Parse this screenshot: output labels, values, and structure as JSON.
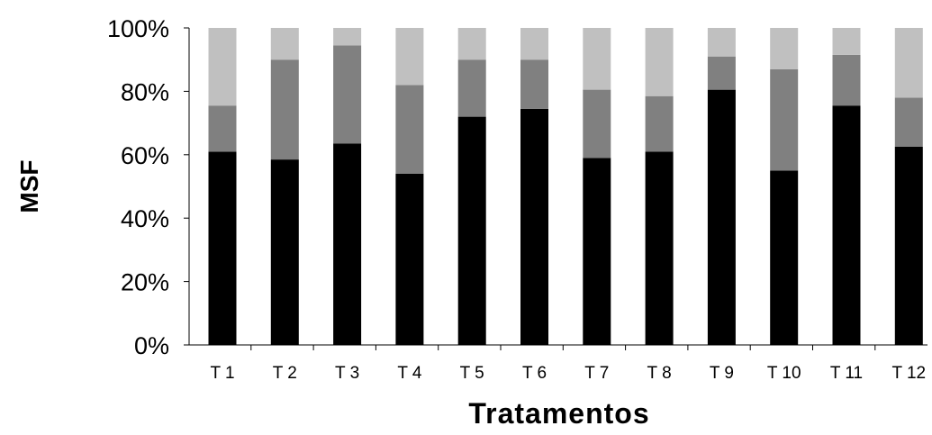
{
  "chart_data": {
    "type": "bar",
    "stacked": true,
    "percent": true,
    "title": "",
    "xlabel": "Tratamentos",
    "ylabel": "MSF",
    "ylim": [
      0,
      100
    ],
    "yticks": [
      "0%",
      "20%",
      "40%",
      "60%",
      "80%",
      "100%"
    ],
    "grid": false,
    "legend": "none",
    "categories": [
      "T 1",
      "T 2",
      "T 3",
      "T 4",
      "T 5",
      "T 6",
      "T 7",
      "T 8",
      "T 9",
      "T 10",
      "T 11",
      "T 12"
    ],
    "series": [
      {
        "values": [
          61,
          58.5,
          63.5,
          54,
          72,
          74.5,
          59,
          61,
          80.5,
          55,
          75.5,
          62.5
        ],
        "color": "#000000"
      },
      {
        "values": [
          14.5,
          31.5,
          31,
          28,
          18,
          15.5,
          21.5,
          17.5,
          10.5,
          32,
          16,
          15.5
        ],
        "color": "#808080"
      },
      {
        "values": [
          24.5,
          10,
          5.5,
          18,
          10,
          10,
          19.5,
          21.5,
          9,
          13,
          8.5,
          22
        ],
        "color": "#c0c0c0"
      }
    ]
  }
}
